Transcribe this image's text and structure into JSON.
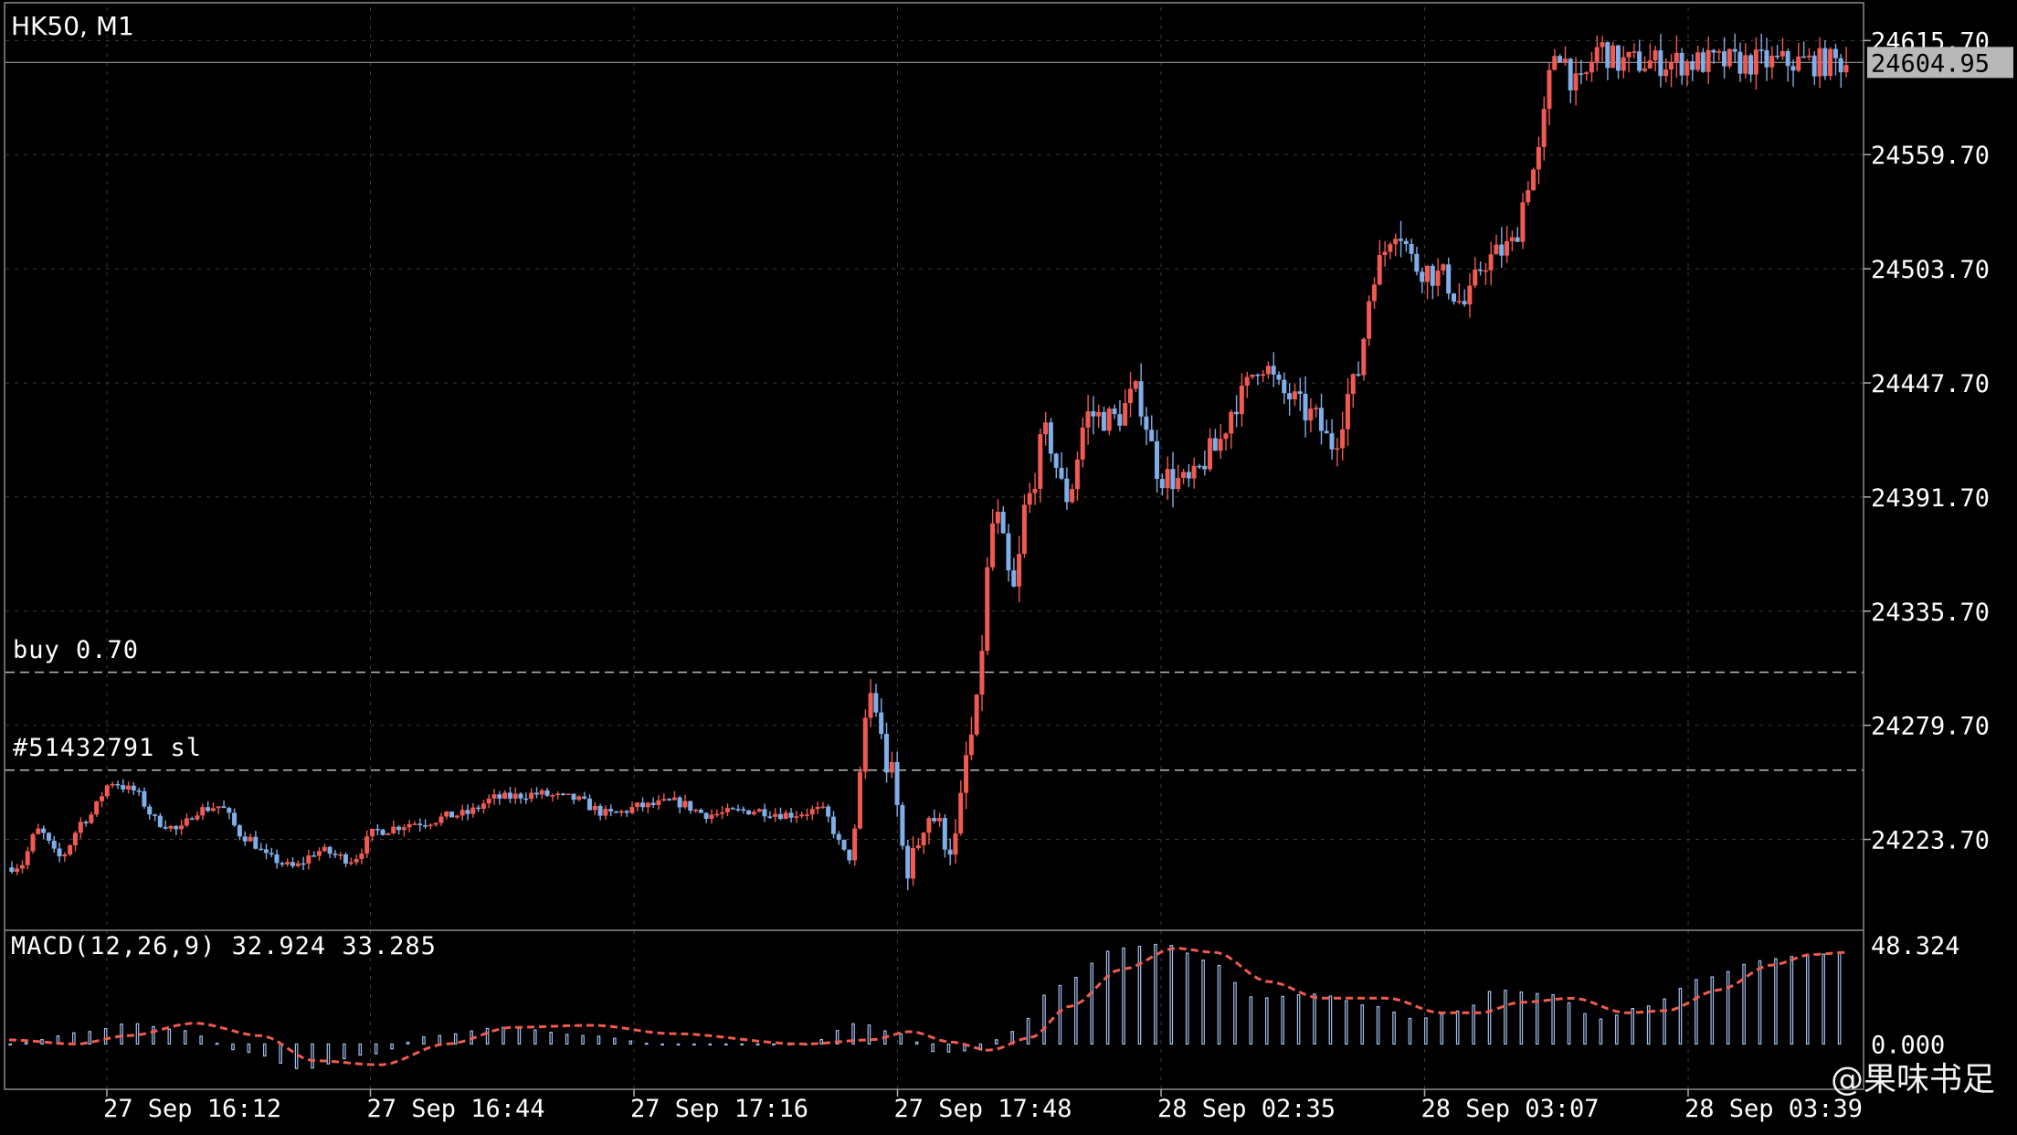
{
  "symbol": "HK50, M1",
  "indicator": {
    "label": "MACD(12,26,9) 32.924 33.285",
    "axis_labels": [
      "48.324",
      "0.000"
    ]
  },
  "orders": {
    "buy_label": "buy 0.70",
    "buy_price": 24305.7,
    "sl_label": "#51432791 sl",
    "sl_price": 24257.7
  },
  "current_price": "24604.95",
  "price_axis_labels": [
    "24615.70",
    "24559.70",
    "24503.70",
    "24447.70",
    "24391.70",
    "24335.70",
    "24279.70",
    "24223.70"
  ],
  "time_axis_labels": [
    "27 Sep 16:12",
    "27 Sep 16:44",
    "27 Sep 17:16",
    "27 Sep 17:48",
    "28 Sep 02:35",
    "28 Sep 03:07",
    "28 Sep 03:39"
  ],
  "watermark": "@果味书足",
  "colors": {
    "bull": "#f05a50",
    "bear": "#7faee8",
    "grid": "#3a3a3a",
    "macd_signal": "#f05a50",
    "macd_hist": "#9fbfec"
  },
  "chart_data": {
    "type": "candlestick",
    "timeframe": "M1",
    "ylim": [
      24180,
      24632
    ],
    "y_ticks": [
      24615.7,
      24559.7,
      24503.7,
      24447.7,
      24391.7,
      24335.7,
      24279.7,
      24223.7
    ],
    "close_path": [
      [
        0,
        24210
      ],
      [
        5,
        24211
      ],
      [
        12,
        24228
      ],
      [
        20,
        24215
      ],
      [
        30,
        24234
      ],
      [
        40,
        24252
      ],
      [
        47,
        24248
      ],
      [
        58,
        24232
      ],
      [
        65,
        24228
      ],
      [
        72,
        24238
      ],
      [
        80,
        24240
      ],
      [
        90,
        24225
      ],
      [
        100,
        24214
      ],
      [
        108,
        24210
      ],
      [
        118,
        24218
      ],
      [
        130,
        24214
      ],
      [
        140,
        24228
      ],
      [
        155,
        24232
      ],
      [
        172,
        24236
      ],
      [
        185,
        24244
      ],
      [
        200,
        24246
      ],
      [
        212,
        24244
      ],
      [
        228,
        24236
      ],
      [
        240,
        24240
      ],
      [
        252,
        24242
      ],
      [
        265,
        24236
      ],
      [
        282,
        24238
      ],
      [
        295,
        24236
      ],
      [
        307,
        24238
      ],
      [
        318,
        24215
      ],
      [
        326,
        24295
      ],
      [
        333,
        24258
      ],
      [
        340,
        24210
      ],
      [
        348,
        24236
      ],
      [
        357,
        24220
      ],
      [
        364,
        24274
      ],
      [
        373,
        24382
      ],
      [
        380,
        24345
      ],
      [
        385,
        24390
      ],
      [
        392,
        24422
      ],
      [
        400,
        24392
      ],
      [
        408,
        24432
      ],
      [
        418,
        24430
      ],
      [
        426,
        24442
      ],
      [
        436,
        24402
      ],
      [
        446,
        24398
      ],
      [
        455,
        24414
      ],
      [
        465,
        24440
      ],
      [
        473,
        24458
      ],
      [
        482,
        24442
      ],
      [
        492,
        24432
      ],
      [
        500,
        24418
      ],
      [
        508,
        24446
      ],
      [
        517,
        24505
      ],
      [
        524,
        24525
      ],
      [
        532,
        24505
      ],
      [
        541,
        24500
      ],
      [
        550,
        24486
      ],
      [
        558,
        24508
      ],
      [
        567,
        24514
      ],
      [
        576,
        24552
      ],
      [
        585,
        24612
      ],
      [
        593,
        24592
      ],
      [
        601,
        24612
      ],
      [
        608,
        24605
      ]
    ],
    "macd_path": [
      [
        0,
        0
      ],
      [
        30,
        6
      ],
      [
        45,
        10
      ],
      [
        62,
        7
      ],
      [
        90,
        -4
      ],
      [
        110,
        -12
      ],
      [
        135,
        -5
      ],
      [
        160,
        4
      ],
      [
        186,
        8
      ],
      [
        218,
        4
      ],
      [
        245,
        0
      ],
      [
        300,
        0
      ],
      [
        320,
        10
      ],
      [
        335,
        5
      ],
      [
        350,
        -4
      ],
      [
        365,
        -3
      ],
      [
        378,
        6
      ],
      [
        395,
        28
      ],
      [
        418,
        46
      ],
      [
        435,
        48
      ],
      [
        452,
        40
      ],
      [
        470,
        22
      ],
      [
        492,
        24
      ],
      [
        515,
        18
      ],
      [
        530,
        12
      ],
      [
        548,
        16
      ],
      [
        560,
        26
      ],
      [
        580,
        24
      ],
      [
        600,
        12
      ],
      [
        616,
        18
      ],
      [
        640,
        32
      ],
      [
        660,
        40
      ],
      [
        672,
        42
      ],
      [
        693,
        44
      ]
    ],
    "signal_path": [
      [
        0,
        2
      ],
      [
        25,
        0
      ],
      [
        45,
        4
      ],
      [
        70,
        10
      ],
      [
        95,
        4
      ],
      [
        115,
        -8
      ],
      [
        140,
        -10
      ],
      [
        165,
        0
      ],
      [
        190,
        8
      ],
      [
        220,
        9
      ],
      [
        250,
        5
      ],
      [
        300,
        0
      ],
      [
        325,
        2
      ],
      [
        340,
        6
      ],
      [
        355,
        1
      ],
      [
        370,
        -3
      ],
      [
        385,
        3
      ],
      [
        400,
        18
      ],
      [
        420,
        36
      ],
      [
        440,
        46
      ],
      [
        455,
        44
      ],
      [
        475,
        30
      ],
      [
        495,
        22
      ],
      [
        520,
        22
      ],
      [
        540,
        15
      ],
      [
        555,
        15
      ],
      [
        570,
        20
      ],
      [
        590,
        22
      ],
      [
        610,
        15
      ],
      [
        625,
        16
      ],
      [
        645,
        26
      ],
      [
        665,
        38
      ],
      [
        680,
        43
      ],
      [
        693,
        44
      ]
    ],
    "macd_ylim": [
      -20,
      52
    ]
  }
}
